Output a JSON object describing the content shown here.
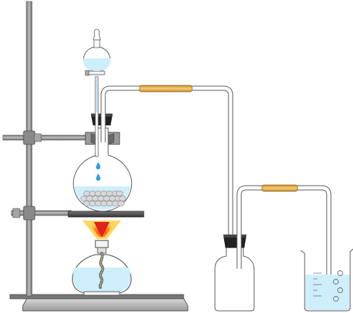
{
  "diagram": {
    "kind": "laboratory gas generation apparatus",
    "components": [
      "iron-stand",
      "separatory-funnel",
      "round-bottom-flask",
      "alcohol-lamp",
      "gas-washing-bottle",
      "collection-beaker"
    ],
    "colors": {
      "glass_outline": "#555555",
      "liquid": "#cfeefc",
      "droplet": "#2a9fe6",
      "stand_metal": "#8a8a8a",
      "rubber_stopper": "#222222",
      "rubber_tube": "#e0b050",
      "flame_outer": "#ffcc33",
      "flame_inner": "#e0221c",
      "hotplate": "#555555",
      "solid_granules": "#d8d8d8"
    }
  }
}
